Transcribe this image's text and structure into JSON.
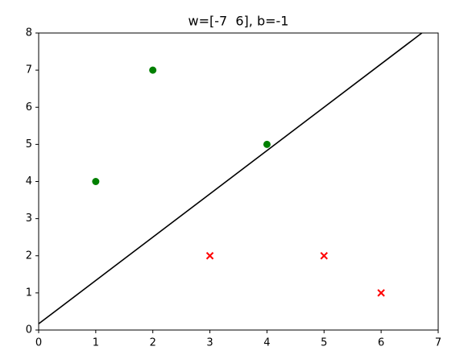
{
  "chart_data": {
    "type": "scatter",
    "title": "w=[-7  6], b=-1",
    "series": [
      {
        "color": "green",
        "marker": "o",
        "x": [
          1,
          2,
          4
        ],
        "values": [
          4,
          7,
          5
        ]
      },
      {
        "color": "red",
        "marker": "x",
        "x": [
          3,
          5,
          6
        ],
        "values": [
          2,
          2,
          1
        ]
      },
      {
        "color": "black",
        "marker": "line",
        "x": [
          0,
          6.714
        ],
        "values": [
          0.167,
          8
        ]
      }
    ],
    "xlim": [
      0,
      7
    ],
    "ylim": [
      0,
      8
    ],
    "xticks": [
      0,
      1,
      2,
      3,
      4,
      5,
      6,
      7
    ],
    "yticks": [
      0,
      1,
      2,
      3,
      4,
      5,
      6,
      7,
      8
    ],
    "grid": false
  }
}
